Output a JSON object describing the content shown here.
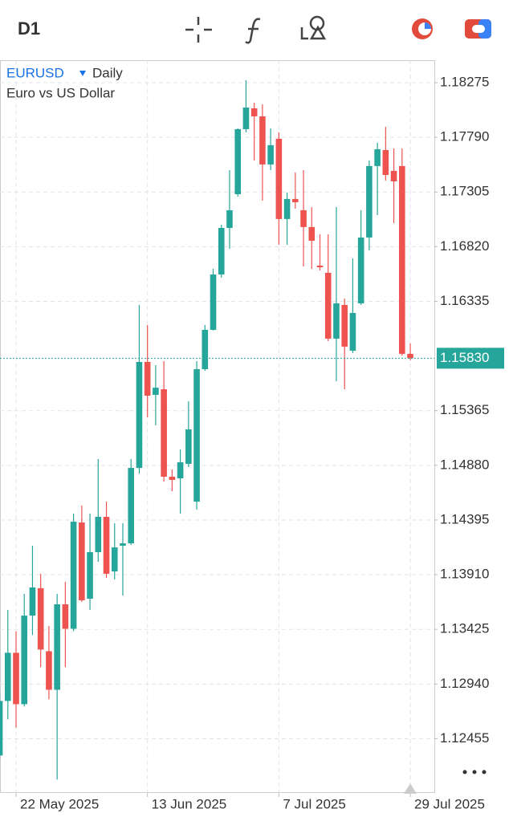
{
  "timeframe": "D1",
  "chart_data": {
    "type": "candlestick",
    "symbol": "EURUSD",
    "period": "Daily",
    "description": "Euro vs US Dollar",
    "up_color": "#26a69a",
    "down_color": "#ef5350",
    "grid": true,
    "categories": [
      null,
      null,
      "22 May 2025",
      null,
      null,
      null,
      null,
      null,
      null,
      null,
      null,
      null,
      null,
      null,
      null,
      null,
      null,
      null,
      "13 Jun 2025",
      null,
      null,
      null,
      null,
      null,
      null,
      null,
      null,
      null,
      null,
      null,
      null,
      null,
      null,
      null,
      "7 Jul 2025",
      null,
      null,
      null,
      null,
      null,
      null,
      null,
      null,
      null,
      null,
      null,
      null,
      null,
      null,
      null,
      "29 Jul 2025"
    ],
    "open": [
      1.12306,
      1.1279,
      1.13217,
      1.12761,
      1.13547,
      1.1379,
      1.13231,
      1.12889,
      1.13647,
      1.1343,
      1.14373,
      1.13697,
      1.1411,
      1.14423,
      1.13939,
      1.14167,
      1.14188,
      1.14857,
      1.15797,
      1.15505,
      1.15555,
      1.14779,
      1.14765,
      1.14893,
      1.14558,
      1.15733,
      1.16082,
      1.16573,
      1.16986,
      1.17285,
      1.17862,
      1.18047,
      1.17976,
      1.17549,
      1.17777,
      1.17065,
      1.17243,
      1.17143,
      1.16994,
      1.16652,
      1.16588,
      1.16004,
      1.16303,
      1.15897,
      1.16317,
      1.16901,
      1.17535,
      1.17677,
      1.17492,
      1.17535,
      1.15869
    ],
    "high": [
      1.12875,
      1.13597,
      1.13409,
      1.1374,
      1.14167,
      1.13918,
      1.13455,
      1.1374,
      1.13847,
      1.14452,
      1.14523,
      1.14452,
      1.14936,
      1.14558,
      1.14366,
      1.14366,
      1.14936,
      1.16303,
      1.16125,
      1.15769,
      1.15804,
      1.14843,
      1.15021,
      1.15448,
      1.15804,
      1.16125,
      1.16623,
      1.17015,
      1.17499,
      1.17869,
      1.18296,
      1.18097,
      1.18083,
      1.17869,
      1.17834,
      1.173,
      1.17478,
      1.17499,
      1.17171,
      1.16929,
      1.16929,
      1.17171,
      1.1636,
      1.16716,
      1.17143,
      1.17584,
      1.17741,
      1.17883,
      1.17691,
      1.17691,
      1.15961
    ],
    "low": [
      1.1227,
      1.12626,
      1.12554,
      1.1274,
      1.13374,
      1.13089,
      1.12804,
      1.12092,
      1.13089,
      1.13409,
      1.13668,
      1.13597,
      1.14024,
      1.13882,
      1.13868,
      1.13725,
      1.14174,
      1.14807,
      1.15306,
      1.15235,
      1.14736,
      1.14651,
      1.14452,
      1.14864,
      1.14487,
      1.15719,
      1.16075,
      1.16545,
      1.16801,
      1.17264,
      1.17834,
      1.17584,
      1.17228,
      1.17499,
      1.16837,
      1.16837,
      1.17157,
      1.16645,
      1.16623,
      1.16609,
      1.15982,
      1.15626,
      1.15555,
      1.15876,
      1.16303,
      1.16787,
      1.171,
      1.17406,
      1.17029,
      1.15854,
      1.15811
    ],
    "close": [
      1.1279,
      1.13217,
      1.12761,
      1.13547,
      1.13797,
      1.13246,
      1.12889,
      1.13647,
      1.1343,
      1.1438,
      1.13683,
      1.1411,
      1.14423,
      1.13918,
      1.14152,
      1.14188,
      1.14857,
      1.15797,
      1.15498,
      1.15569,
      1.14779,
      1.14751,
      1.14907,
      1.15199,
      1.15733,
      1.16082,
      1.16573,
      1.16986,
      1.17143,
      1.17862,
      1.18054,
      1.17976,
      1.17549,
      1.1772,
      1.17065,
      1.17243,
      1.17214,
      1.16994,
      1.16872,
      1.16637,
      1.16004,
      1.16317,
      1.15933,
      1.16232,
      1.16901,
      1.17535,
      1.17684,
      1.17456,
      1.17399,
      1.15869,
      1.1583
    ],
    "ylim": [
      1.11974,
      1.18474
    ],
    "yticks": [
      1.18275,
      {
        "value": 1.1779,
        "label": "1.17790"
      },
      1.17305,
      {
        "value": 1.1682,
        "label": "1.16820"
      },
      1.16335,
      1.15365,
      {
        "value": 1.1488,
        "label": "1.14880"
      },
      1.14395,
      {
        "value": 1.1391,
        "label": "1.13910"
      },
      1.13425,
      {
        "value": 1.1294,
        "label": "1.12940"
      },
      1.12455
    ],
    "last_price": {
      "value": 1.1583,
      "label": "1.15830"
    }
  }
}
